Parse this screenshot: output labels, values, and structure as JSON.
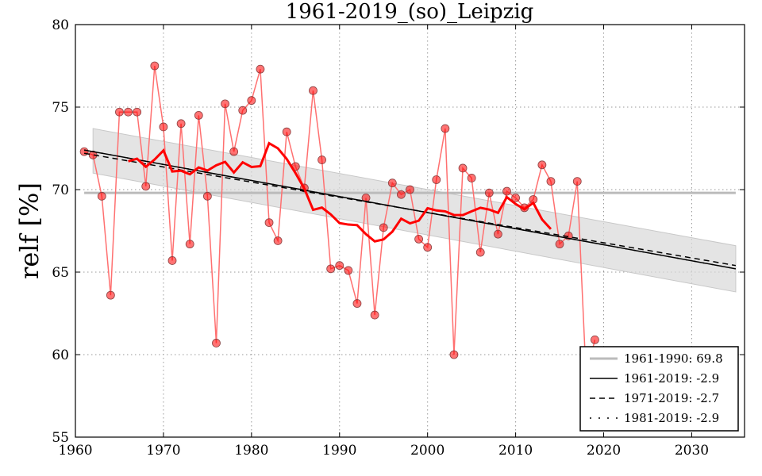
{
  "chart_data": {
    "type": "line",
    "title": "1961-2019_(so)_Leipzig",
    "xlabel": "",
    "ylabel": "relf [%]",
    "xlim": [
      1960,
      2036
    ],
    "ylim": [
      55,
      80
    ],
    "grid": true,
    "xticks": [
      1960,
      1970,
      1980,
      1990,
      2000,
      2010,
      2020,
      2030
    ],
    "yticks": [
      55,
      60,
      65,
      70,
      75,
      80
    ],
    "colors": {
      "points": "#ff0000",
      "line": "#ff7070",
      "smooth": "#ff0000",
      "mean": "#bbbbbb",
      "band": "#d9d9d9"
    },
    "years": [
      1961,
      1962,
      1963,
      1964,
      1965,
      1966,
      1967,
      1968,
      1969,
      1970,
      1971,
      1972,
      1973,
      1974,
      1975,
      1976,
      1977,
      1978,
      1979,
      1980,
      1981,
      1982,
      1983,
      1984,
      1985,
      1986,
      1987,
      1988,
      1989,
      1990,
      1991,
      1992,
      1993,
      1994,
      1995,
      1996,
      1997,
      1998,
      1999,
      2000,
      2001,
      2002,
      2003,
      2004,
      2005,
      2006,
      2007,
      2008,
      2009,
      2010,
      2011,
      2012,
      2013,
      2014,
      2015,
      2016,
      2017,
      2018,
      2019
    ],
    "values": [
      72.3,
      72.1,
      69.6,
      63.6,
      74.7,
      74.7,
      74.7,
      70.2,
      77.5,
      73.8,
      65.7,
      74.0,
      66.7,
      74.5,
      69.6,
      60.7,
      75.2,
      72.3,
      74.8,
      75.4,
      77.3,
      68.0,
      66.9,
      73.5,
      71.4,
      70.1,
      76.0,
      71.8,
      65.2,
      65.4,
      65.1,
      63.1,
      69.5,
      62.4,
      67.7,
      70.4,
      69.7,
      70.0,
      67.0,
      66.5,
      70.6,
      73.7,
      60.0,
      71.3,
      70.7,
      66.2,
      69.8,
      67.3,
      69.9,
      69.5,
      68.9,
      69.4,
      71.5,
      70.5,
      66.7,
      67.2,
      70.5,
      58.7,
      60.9
    ],
    "smoothing_window": 11,
    "mean_line": {
      "label": "1961-1990: 69.8",
      "value": 69.8
    },
    "trends": [
      {
        "label": "1961-2019: -2.9",
        "style": "solid",
        "x": [
          1961,
          2035
        ],
        "y": [
          72.4,
          65.2
        ]
      },
      {
        "label": "1971-2019: -2.7",
        "style": "dashed",
        "x": [
          1961,
          2035
        ],
        "y": [
          72.2,
          65.4
        ]
      },
      {
        "label": "1981-2019: -2.9",
        "style": "dotted",
        "x": [
          1961,
          2035
        ],
        "y": [
          72.4,
          65.2
        ]
      }
    ],
    "band": {
      "x": [
        1962,
        2035
      ],
      "upper": [
        73.7,
        66.6
      ],
      "lower": [
        71.0,
        63.8
      ]
    },
    "legend_position": "bottom-right"
  }
}
